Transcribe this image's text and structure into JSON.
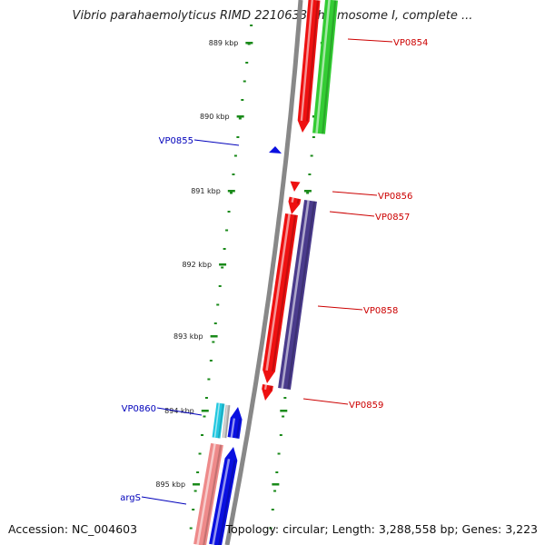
{
  "title": "Vibrio parahaemolyticus RIMD 2210633 chromosome I, complete ...",
  "accession": "Accession: NC_004603",
  "topology": "Topology: circular; Length: 3,288,558 bp; Genes: 3,223",
  "colors": {
    "backbone": "#888888",
    "ticks": "#1a8a1a",
    "tick_label": "#222222",
    "red": "#ee1111",
    "green": "#33cc33",
    "purple": "#4a3b8c",
    "blue": "#0a10e0",
    "cyan": "#22c8e0",
    "pink": "#ee8a8a",
    "label_red": "#cc0000",
    "label_blue": "#0000bb"
  },
  "tick_labels": [
    "889 kbp",
    "890 kbp",
    "891 kbp",
    "892 kbp",
    "893 kbp",
    "894 kbp",
    "895 kbp"
  ],
  "gene_labels": [
    {
      "text": "VP0854",
      "color": "red"
    },
    {
      "text": "VP0855",
      "color": "blue"
    },
    {
      "text": "VP0856",
      "color": "red"
    },
    {
      "text": "VP0857",
      "color": "red"
    },
    {
      "text": "VP0858",
      "color": "red"
    },
    {
      "text": "VP0859",
      "color": "red"
    },
    {
      "text": "VP0860",
      "color": "blue"
    },
    {
      "text": "argS",
      "color": "blue"
    }
  ]
}
